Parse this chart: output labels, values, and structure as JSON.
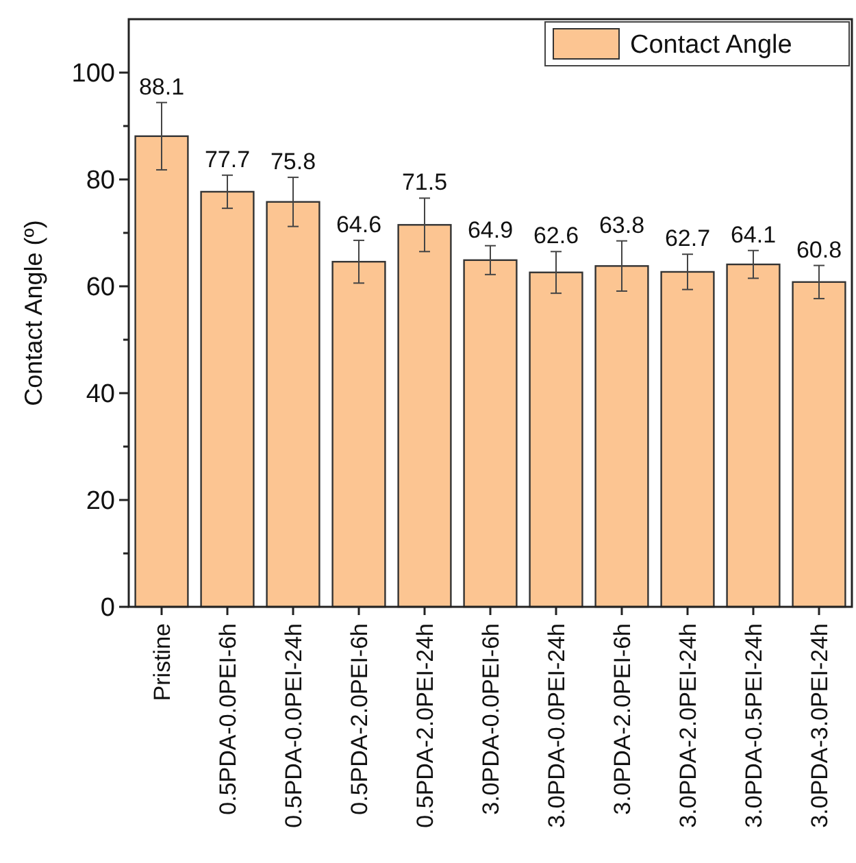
{
  "chart_data": {
    "type": "bar",
    "ylabel": "Contact Angle (º)",
    "categories": [
      "Pristine",
      "0.5PDA-0.0PEI-6h",
      "0.5PDA-0.0PEI-24h",
      "0.5PDA-2.0PEI-6h",
      "0.5PDA-2.0PEI-24h",
      "3.0PDA-0.0PEI-6h",
      "3.0PDA-0.0PEI-24h",
      "3.0PDA-2.0PEI-6h",
      "3.0PDA-2.0PEI-24h",
      "3.0PDA-0.5PEI-24h",
      "3.0PDA-3.0PEI-24h"
    ],
    "series": [
      {
        "name": "Contact Angle",
        "color": "#fcc592",
        "values": [
          88.1,
          77.7,
          75.8,
          64.6,
          71.5,
          64.9,
          62.6,
          63.8,
          62.7,
          64.1,
          60.8
        ],
        "errors": [
          6.3,
          3.1,
          4.6,
          4.0,
          5.0,
          2.7,
          3.9,
          4.7,
          3.3,
          2.6,
          3.1
        ]
      }
    ],
    "data_labels": true,
    "ylim": [
      0,
      110
    ],
    "yticks": [
      0,
      {
        "value": 10,
        "label": null
      },
      20,
      {
        "value": 30,
        "label": null
      },
      40,
      {
        "value": 50,
        "label": null
      },
      60,
      {
        "value": 70,
        "label": null
      },
      80,
      {
        "value": 90,
        "label": null
      },
      100
    ],
    "grid": false,
    "legend": "top right"
  }
}
